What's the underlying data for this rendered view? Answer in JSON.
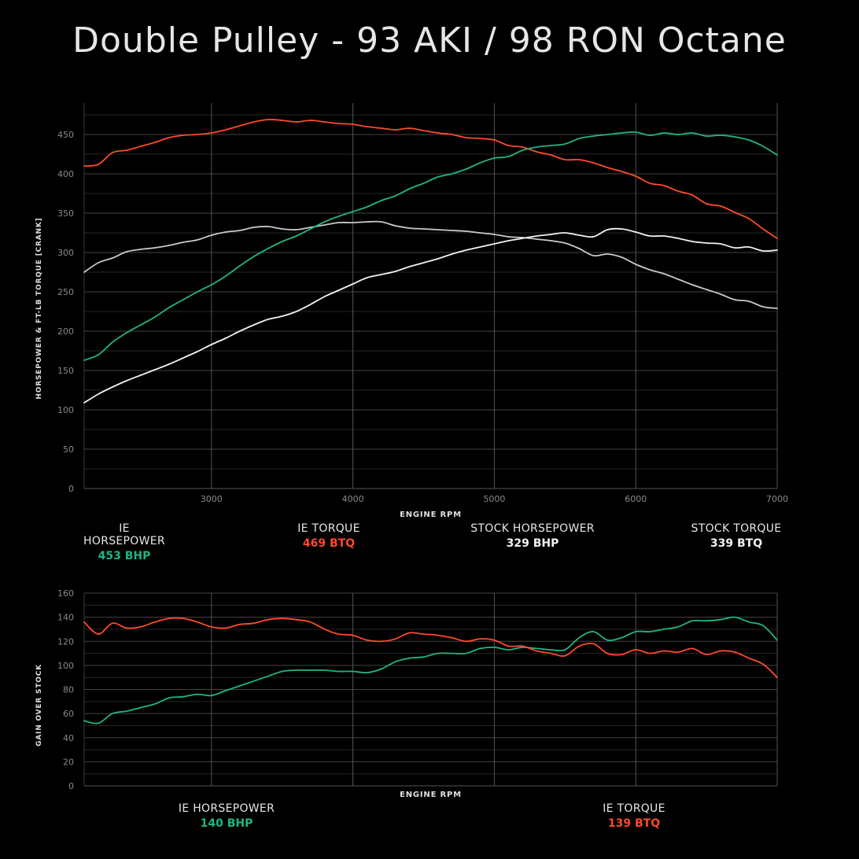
{
  "title": "Double Pulley - 93 AKI / 98 RON Octane",
  "colors": {
    "ie_hp": "#1fb487",
    "ie_tq": "#ff4a2a",
    "stock_hp": "#f2f2f2",
    "stock_tq": "#c9c9c9",
    "grid": "#3c3c3c",
    "tick": "#8a8a8a"
  },
  "chart_data": [
    {
      "type": "line",
      "xlabel": "ENGINE RPM",
      "ylabel": "HORSEPOWER & FT-LB TORQUE [CRANK]",
      "xlim": [
        2100,
        7000
      ],
      "ylim": [
        0,
        490
      ],
      "xticks": [
        3000,
        4000,
        5000,
        6000,
        7000
      ],
      "yticks": [
        0,
        50,
        100,
        150,
        200,
        250,
        300,
        350,
        400,
        450
      ],
      "series": [
        {
          "name": "IE HORSEPOWER",
          "color_key": "ie_hp",
          "x": [
            2100,
            2200,
            2300,
            2400,
            2500,
            2600,
            2700,
            2800,
            2900,
            3000,
            3100,
            3200,
            3300,
            3400,
            3500,
            3600,
            3700,
            3800,
            3900,
            4000,
            4100,
            4200,
            4300,
            4400,
            4500,
            4600,
            4700,
            4800,
            4900,
            5000,
            5100,
            5200,
            5300,
            5400,
            5500,
            5600,
            5700,
            5800,
            5900,
            6000,
            6100,
            6200,
            6300,
            6400,
            6500,
            6600,
            6700,
            6800,
            6900,
            7000
          ],
          "y": [
            163,
            170,
            186,
            198,
            208,
            218,
            230,
            240,
            250,
            259,
            270,
            283,
            295,
            305,
            314,
            321,
            330,
            339,
            346,
            352,
            358,
            366,
            372,
            381,
            388,
            396,
            400,
            406,
            414,
            420,
            422,
            430,
            434,
            436,
            438,
            445,
            448,
            450,
            452,
            453,
            449,
            452,
            450,
            452,
            448,
            449,
            447,
            443,
            435,
            424
          ]
        },
        {
          "name": "IE TORQUE",
          "color_key": "ie_tq",
          "x": [
            2100,
            2200,
            2300,
            2400,
            2500,
            2600,
            2700,
            2800,
            2900,
            3000,
            3100,
            3200,
            3300,
            3400,
            3500,
            3600,
            3700,
            3800,
            3900,
            4000,
            4100,
            4200,
            4300,
            4400,
            4500,
            4600,
            4700,
            4800,
            4900,
            5000,
            5100,
            5200,
            5300,
            5400,
            5500,
            5600,
            5700,
            5800,
            5900,
            6000,
            6100,
            6200,
            6300,
            6400,
            6500,
            6600,
            6700,
            6800,
            6900,
            7000
          ],
          "y": [
            410,
            412,
            427,
            430,
            435,
            440,
            446,
            449,
            450,
            452,
            456,
            461,
            466,
            469,
            468,
            466,
            468,
            466,
            464,
            463,
            460,
            458,
            456,
            458,
            455,
            452,
            450,
            446,
            445,
            443,
            436,
            434,
            428,
            424,
            418,
            418,
            414,
            408,
            403,
            397,
            388,
            385,
            378,
            373,
            362,
            359,
            351,
            343,
            330,
            318
          ]
        },
        {
          "name": "STOCK HORSEPOWER",
          "color_key": "stock_hp",
          "x": [
            2100,
            2200,
            2300,
            2400,
            2500,
            2600,
            2700,
            2800,
            2900,
            3000,
            3100,
            3200,
            3300,
            3400,
            3500,
            3600,
            3700,
            3800,
            3900,
            4000,
            4100,
            4200,
            4300,
            4400,
            4500,
            4600,
            4700,
            4800,
            4900,
            5000,
            5100,
            5200,
            5300,
            5400,
            5500,
            5600,
            5700,
            5800,
            5900,
            6000,
            6100,
            6200,
            6300,
            6400,
            6500,
            6600,
            6700,
            6800,
            6900,
            7000
          ],
          "y": [
            109,
            120,
            129,
            137,
            144,
            151,
            158,
            166,
            174,
            183,
            191,
            200,
            208,
            215,
            219,
            225,
            234,
            244,
            252,
            260,
            268,
            272,
            276,
            282,
            287,
            292,
            298,
            303,
            307,
            311,
            315,
            318,
            321,
            323,
            325,
            322,
            320,
            329,
            330,
            326,
            321,
            321,
            318,
            314,
            312,
            311,
            306,
            307,
            302,
            303
          ]
        },
        {
          "name": "STOCK TORQUE",
          "color_key": "stock_tq",
          "x": [
            2100,
            2200,
            2300,
            2400,
            2500,
            2600,
            2700,
            2800,
            2900,
            3000,
            3100,
            3200,
            3300,
            3400,
            3500,
            3600,
            3700,
            3800,
            3900,
            4000,
            4100,
            4200,
            4300,
            4400,
            4500,
            4600,
            4700,
            4800,
            4900,
            5000,
            5100,
            5200,
            5300,
            5400,
            5500,
            5600,
            5700,
            5800,
            5900,
            6000,
            6100,
            6200,
            6300,
            6400,
            6500,
            6600,
            6700,
            6800,
            6900,
            7000
          ],
          "y": [
            275,
            287,
            293,
            301,
            304,
            306,
            309,
            313,
            316,
            322,
            326,
            328,
            332,
            333,
            330,
            329,
            332,
            335,
            338,
            338,
            339,
            339,
            334,
            331,
            330,
            329,
            328,
            327,
            325,
            323,
            320,
            319,
            317,
            315,
            312,
            305,
            296,
            298,
            294,
            285,
            278,
            273,
            266,
            259,
            253,
            247,
            240,
            238,
            231,
            229
          ]
        }
      ],
      "legend": [
        {
          "label": "IE HORSEPOWER",
          "value": "453 BHP",
          "color_key": "ie_hp"
        },
        {
          "label": "IE TORQUE",
          "value": "469 BTQ",
          "color_key": "ie_tq"
        },
        {
          "label": "STOCK HORSEPOWER",
          "value": "329 BHP",
          "color_key": "stock_hp"
        },
        {
          "label": "STOCK TORQUE",
          "value": "339 BTQ",
          "color_key": "stock_hp"
        }
      ]
    },
    {
      "type": "line",
      "xlabel": "ENGINE RPM",
      "ylabel": "GAIN OVER STOCK",
      "xlim": [
        2100,
        7000
      ],
      "ylim": [
        0,
        160
      ],
      "xgrid": [
        3000,
        4000,
        5000,
        6000,
        7000
      ],
      "yticks": [
        0,
        20,
        40,
        60,
        80,
        100,
        120,
        140,
        160
      ],
      "series": [
        {
          "name": "IE HORSEPOWER",
          "color_key": "ie_hp",
          "x": [
            2100,
            2200,
            2300,
            2400,
            2500,
            2600,
            2700,
            2800,
            2900,
            3000,
            3100,
            3200,
            3300,
            3400,
            3500,
            3600,
            3700,
            3800,
            3900,
            4000,
            4100,
            4200,
            4300,
            4400,
            4500,
            4600,
            4700,
            4800,
            4900,
            5000,
            5100,
            5200,
            5300,
            5400,
            5500,
            5600,
            5700,
            5800,
            5900,
            6000,
            6100,
            6200,
            6300,
            6400,
            6500,
            6600,
            6700,
            6800,
            6900,
            7000
          ],
          "y": [
            54,
            52,
            60,
            62,
            65,
            68,
            73,
            74,
            76,
            75,
            79,
            83,
            87,
            91,
            95,
            96,
            96,
            96,
            95,
            95,
            94,
            97,
            103,
            106,
            107,
            110,
            110,
            110,
            114,
            115,
            113,
            115,
            114,
            113,
            113,
            123,
            128,
            121,
            123,
            128,
            128,
            130,
            132,
            137,
            137,
            138,
            140,
            136,
            133,
            121
          ]
        },
        {
          "name": "IE TORQUE",
          "color_key": "ie_tq",
          "x": [
            2100,
            2200,
            2300,
            2400,
            2500,
            2600,
            2700,
            2800,
            2900,
            3000,
            3100,
            3200,
            3300,
            3400,
            3500,
            3600,
            3700,
            3800,
            3900,
            4000,
            4100,
            4200,
            4300,
            4400,
            4500,
            4600,
            4700,
            4800,
            4900,
            5000,
            5100,
            5200,
            5300,
            5400,
            5500,
            5600,
            5700,
            5800,
            5900,
            6000,
            6100,
            6200,
            6300,
            6400,
            6500,
            6600,
            6700,
            6800,
            6900,
            7000
          ],
          "y": [
            136,
            126,
            135,
            131,
            132,
            136,
            139,
            139,
            136,
            132,
            131,
            134,
            135,
            138,
            139,
            138,
            136,
            130,
            126,
            125,
            121,
            120,
            122,
            127,
            126,
            125,
            123,
            120,
            122,
            121,
            116,
            116,
            112,
            110,
            108,
            116,
            118,
            110,
            109,
            113,
            110,
            112,
            111,
            114,
            109,
            112,
            111,
            106,
            101,
            90
          ]
        }
      ],
      "legend": [
        {
          "label": "IE HORSEPOWER",
          "value": "140 BHP",
          "color_key": "ie_hp"
        },
        {
          "label": "IE TORQUE",
          "value": "139 BTQ",
          "color_key": "ie_tq"
        }
      ]
    }
  ]
}
